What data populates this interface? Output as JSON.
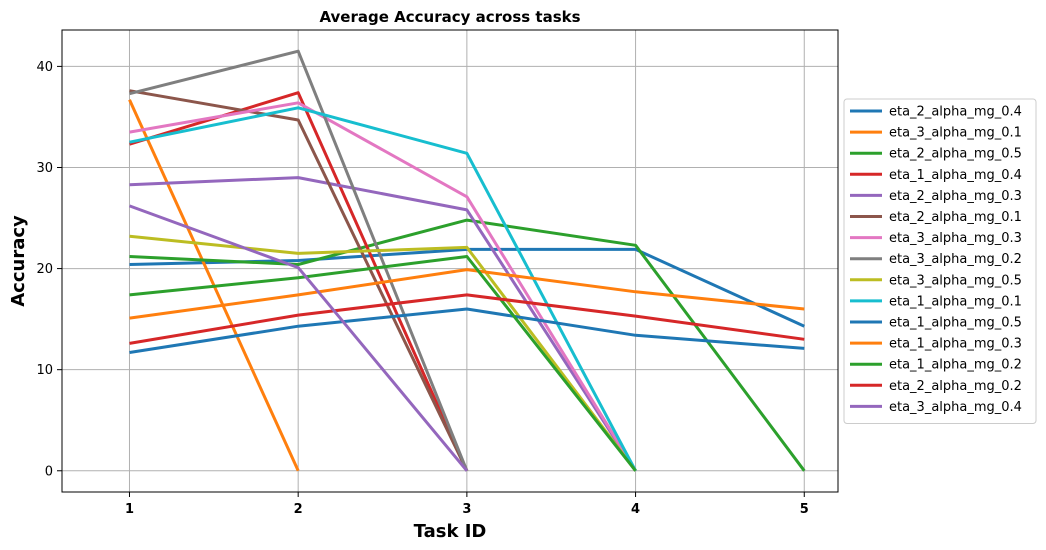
{
  "chart_data": {
    "type": "line",
    "title": "Average Accuracy across tasks",
    "xlabel": "Task ID",
    "ylabel": "Accuracy",
    "x": [
      1,
      2,
      3,
      4,
      5
    ],
    "xticks": [
      1,
      2,
      3,
      4,
      5
    ],
    "yticks": [
      0,
      10,
      20,
      30,
      40
    ],
    "xlim": [
      0.6,
      5.2
    ],
    "ylim": [
      -2.1,
      43.6
    ],
    "grid": true,
    "legend_position": "right, outside plot",
    "series": [
      {
        "name": "eta_2_alpha_mg_0.4",
        "color": "#1f77b4",
        "values": [
          20.4,
          20.8,
          21.9,
          21.9,
          14.3
        ]
      },
      {
        "name": "eta_3_alpha_mg_0.1",
        "color": "#ff7f0e",
        "values": [
          36.7,
          0.0,
          null,
          null,
          null
        ]
      },
      {
        "name": "eta_2_alpha_mg_0.5",
        "color": "#2ca02c",
        "values": [
          21.2,
          20.4,
          24.8,
          22.3,
          0.0
        ]
      },
      {
        "name": "eta_1_alpha_mg_0.4",
        "color": "#d62728",
        "values": [
          32.3,
          37.4,
          0.0,
          null,
          null
        ]
      },
      {
        "name": "eta_2_alpha_mg_0.3",
        "color": "#9467bd",
        "values": [
          28.3,
          29.0,
          25.8,
          0.0,
          null
        ]
      },
      {
        "name": "eta_2_alpha_mg_0.1",
        "color": "#8c564b",
        "values": [
          37.6,
          34.7,
          0.0,
          null,
          null
        ]
      },
      {
        "name": "eta_3_alpha_mg_0.3",
        "color": "#e377c2",
        "values": [
          33.5,
          36.4,
          27.1,
          0.0,
          null
        ]
      },
      {
        "name": "eta_3_alpha_mg_0.2",
        "color": "#7f7f7f",
        "values": [
          37.3,
          41.5,
          0.0,
          null,
          null
        ]
      },
      {
        "name": "eta_3_alpha_mg_0.5",
        "color": "#bcbd22",
        "values": [
          23.2,
          21.5,
          22.1,
          0.0,
          null
        ]
      },
      {
        "name": "eta_1_alpha_mg_0.1",
        "color": "#17becf",
        "values": [
          32.5,
          35.9,
          31.4,
          0.0,
          null
        ]
      },
      {
        "name": "eta_1_alpha_mg_0.5",
        "color": "#1f77b4",
        "values": [
          11.7,
          14.3,
          16.0,
          13.4,
          12.1
        ]
      },
      {
        "name": "eta_1_alpha_mg_0.3",
        "color": "#ff7f0e",
        "values": [
          15.1,
          17.4,
          19.9,
          17.7,
          16.0
        ]
      },
      {
        "name": "eta_1_alpha_mg_0.2",
        "color": "#2ca02c",
        "values": [
          17.4,
          19.1,
          21.2,
          0.0,
          null
        ]
      },
      {
        "name": "eta_2_alpha_mg_0.2",
        "color": "#d62728",
        "values": [
          12.6,
          15.4,
          17.4,
          15.3,
          13.0
        ]
      },
      {
        "name": "eta_3_alpha_mg_0.4",
        "color": "#9467bd",
        "values": [
          26.2,
          20.1,
          0.0,
          null,
          null
        ]
      }
    ]
  }
}
